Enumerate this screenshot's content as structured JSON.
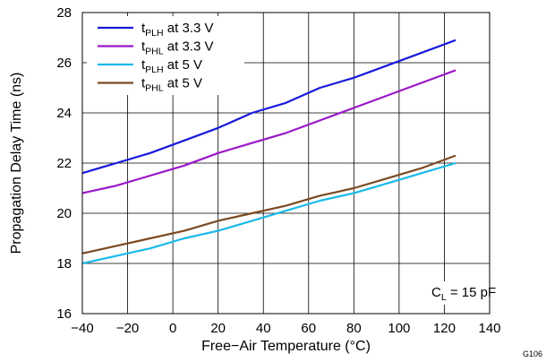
{
  "chart_data": {
    "type": "line",
    "xlabel": "Free−Air Temperature (°C)",
    "ylabel": "Propagation Delay Time (ns)",
    "xlim": [
      -40,
      140
    ],
    "ylim": [
      16,
      28
    ],
    "x_ticks": [
      -40,
      -20,
      0,
      20,
      40,
      60,
      80,
      100,
      120,
      140
    ],
    "y_ticks": [
      16,
      18,
      20,
      22,
      24,
      26,
      28
    ],
    "x_tick_labels": [
      "−40",
      "−20",
      "0",
      "20",
      "40",
      "60",
      "80",
      "100",
      "120",
      "140"
    ],
    "y_tick_labels": [
      "16",
      "18",
      "20",
      "22",
      "24",
      "26",
      "28"
    ],
    "grid": true,
    "legend_position": "top-left",
    "series": [
      {
        "name_main": "t",
        "name_sub": "PLH",
        "name_rest": " at 3.3 V",
        "color": "#1a1adb",
        "x": [
          -40,
          -25,
          -10,
          5,
          20,
          35,
          50,
          65,
          80,
          95,
          110,
          125
        ],
        "y": [
          21.6,
          22.0,
          22.4,
          22.9,
          23.4,
          24.0,
          24.4,
          25.0,
          25.4,
          25.9,
          26.4,
          26.9
        ]
      },
      {
        "name_main": "t",
        "name_sub": "PHL",
        "name_rest": " at 3.3 V",
        "color": "#9b17c9",
        "x": [
          -40,
          -25,
          -10,
          5,
          20,
          35,
          50,
          65,
          80,
          95,
          110,
          125
        ],
        "y": [
          20.8,
          21.1,
          21.5,
          21.9,
          22.4,
          22.8,
          23.2,
          23.7,
          24.2,
          24.7,
          25.2,
          25.7
        ]
      },
      {
        "name_main": "t",
        "name_sub": "PLH",
        "name_rest": " at 5 V",
        "color": "#19b9ea",
        "x": [
          -40,
          -25,
          -10,
          5,
          20,
          35,
          50,
          65,
          80,
          95,
          110,
          125
        ],
        "y": [
          18.0,
          18.3,
          18.6,
          19.0,
          19.3,
          19.7,
          20.1,
          20.5,
          20.8,
          21.2,
          21.6,
          22.0
        ]
      },
      {
        "name_main": "t",
        "name_sub": "PHL",
        "name_rest": " at 5 V",
        "color": "#7b4a22",
        "x": [
          -40,
          -25,
          -10,
          5,
          20,
          35,
          50,
          65,
          80,
          95,
          110,
          125
        ],
        "y": [
          18.4,
          18.7,
          19.0,
          19.3,
          19.7,
          20.0,
          20.3,
          20.7,
          21.0,
          21.4,
          21.8,
          22.3
        ]
      }
    ],
    "annotation": {
      "main": "C",
      "sub": "L",
      "rest": " = 15 pF",
      "position": "bottom-right"
    },
    "figure_id": "G106"
  }
}
